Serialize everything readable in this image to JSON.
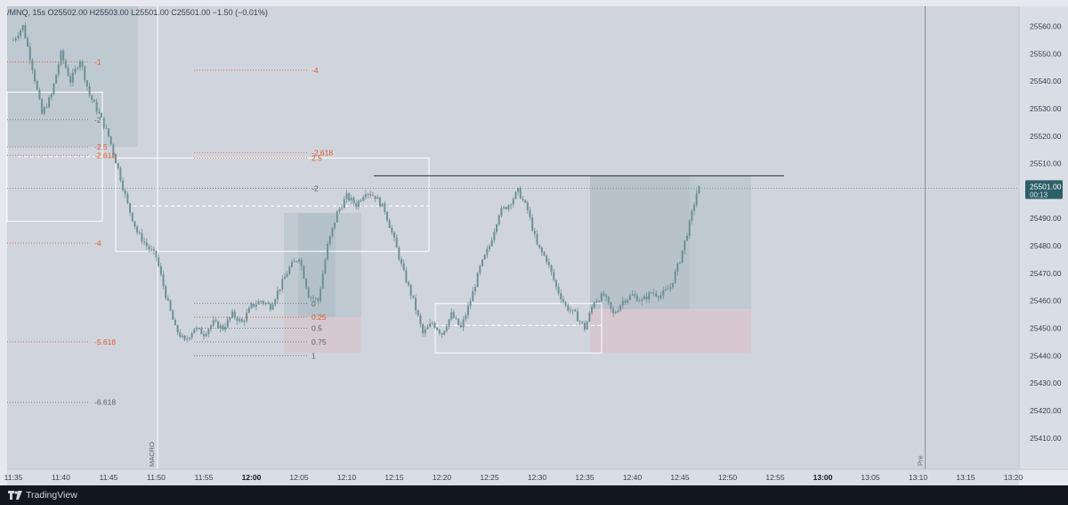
{
  "symbol": {
    "name": "/MNQ",
    "interval": "15s",
    "open": "O25502.00",
    "high": "H25503.00",
    "low": "L25501.00",
    "close": "C25501.00",
    "change": "−1.50 (−0.01%)"
  },
  "price_label": {
    "value": "25501.00",
    "countdown": "00:13"
  },
  "footer": {
    "brand": "TradingView"
  },
  "colors": {
    "background": "#d0d4dd",
    "candle": "#6f8f97",
    "fib_orange": "#e0592a",
    "fib_gray": "#5a5f6a",
    "box_fill": "#bcc7cf",
    "pink_fill": "#d6c7cc",
    "white_lines": "#ffffff"
  },
  "markers": {
    "macro": {
      "label": "MACRO",
      "time": "11:50"
    },
    "pre": {
      "label": "Pre",
      "time": "13:10"
    }
  },
  "chart_data": {
    "type": "candlestick",
    "title": "",
    "x_axis": {
      "ticks": [
        "11:35",
        "11:40",
        "11:45",
        "11:50",
        "11:55",
        "12:00",
        "12:05",
        "12:10",
        "12:15",
        "12:20",
        "12:25",
        "12:30",
        "12:35",
        "12:40",
        "12:45",
        "12:50",
        "12:55",
        "13:00",
        "13:05",
        "13:10",
        "13:15",
        "13:20"
      ],
      "bold_ticks": [
        "12:00",
        "13:00"
      ]
    },
    "y_axis": {
      "side": "right",
      "ticks": [
        25410,
        25420,
        25430,
        25440,
        25450,
        25460,
        25470,
        25480,
        25490,
        25500,
        25510,
        25520,
        25530,
        25540,
        25550,
        25560
      ],
      "ylim": [
        25400,
        25565
      ]
    },
    "price_path": [
      [
        "11:35",
        25555
      ],
      [
        "11:36",
        25560
      ],
      [
        "11:37",
        25545
      ],
      [
        "11:38",
        25528
      ],
      [
        "11:39",
        25535
      ],
      [
        "11:40",
        25550
      ],
      [
        "11:41",
        25540
      ],
      [
        "11:42",
        25548
      ],
      [
        "11:43",
        25535
      ],
      [
        "11:44",
        25528
      ],
      [
        "11:45",
        25520
      ],
      [
        "11:46",
        25508
      ],
      [
        "11:47",
        25495
      ],
      [
        "11:48",
        25485
      ],
      [
        "11:49",
        25480
      ],
      [
        "11:50",
        25476
      ],
      [
        "11:51",
        25462
      ],
      [
        "11:52",
        25450
      ],
      [
        "11:53",
        25445
      ],
      [
        "11:54",
        25450
      ],
      [
        "11:55",
        25448
      ],
      [
        "11:56",
        25452
      ],
      [
        "11:57",
        25450
      ],
      [
        "11:58",
        25455
      ],
      [
        "11:59",
        25452
      ],
      [
        "12:00",
        25458
      ],
      [
        "12:01",
        25460
      ],
      [
        "12:02",
        25458
      ],
      [
        "12:03",
        25465
      ],
      [
        "12:04",
        25472
      ],
      [
        "12:05",
        25476
      ],
      [
        "12:06",
        25462
      ],
      [
        "12:07",
        25460
      ],
      [
        "12:08",
        25480
      ],
      [
        "12:09",
        25492
      ],
      [
        "12:10",
        25498
      ],
      [
        "12:11",
        25495
      ],
      [
        "12:12",
        25500
      ],
      [
        "12:13",
        25498
      ],
      [
        "12:14",
        25493
      ],
      [
        "12:15",
        25482
      ],
      [
        "12:16",
        25470
      ],
      [
        "12:17",
        25460
      ],
      [
        "12:18",
        25448
      ],
      [
        "12:19",
        25452
      ],
      [
        "12:20",
        25448
      ],
      [
        "12:21",
        25455
      ],
      [
        "12:22",
        25450
      ],
      [
        "12:23",
        25460
      ],
      [
        "12:24",
        25472
      ],
      [
        "12:25",
        25480
      ],
      [
        "12:26",
        25492
      ],
      [
        "12:27",
        25495
      ],
      [
        "12:28",
        25500
      ],
      [
        "12:29",
        25493
      ],
      [
        "12:30",
        25480
      ],
      [
        "12:31",
        25475
      ],
      [
        "12:32",
        25465
      ],
      [
        "12:33",
        25458
      ],
      [
        "12:34",
        25455
      ],
      [
        "12:35",
        25450
      ],
      [
        "12:36",
        25460
      ],
      [
        "12:37",
        25462
      ],
      [
        "12:38",
        25455
      ],
      [
        "12:39",
        25460
      ],
      [
        "12:40",
        25462
      ],
      [
        "12:41",
        25460
      ],
      [
        "12:42",
        25463
      ],
      [
        "12:43",
        25462
      ],
      [
        "12:44",
        25465
      ],
      [
        "12:45",
        25475
      ],
      [
        "12:46",
        25488
      ],
      [
        "12:47",
        25503
      ],
      [
        "12:47",
        25501
      ]
    ],
    "resistance_line": {
      "price": 25505.5,
      "from": "12:12",
      "to": "12:56"
    },
    "current_price_line": 25501,
    "fib_levels_left": [
      {
        "label": "-1",
        "price": 25547,
        "color": "orange"
      },
      {
        "label": "-2",
        "price": 25526,
        "color": "gray"
      },
      {
        "label": "-2.5",
        "price": 25516,
        "color": "orange"
      },
      {
        "label": "-2.618",
        "price": 25513,
        "color": "orange"
      },
      {
        "label": "-4",
        "price": 25481,
        "color": "orange"
      },
      {
        "label": "-5.618",
        "price": 25445,
        "color": "orange"
      },
      {
        "label": "-6.618",
        "price": 25423,
        "color": "gray"
      }
    ],
    "fib_levels_right": [
      {
        "label": "-4",
        "price": 25544,
        "color": "orange"
      },
      {
        "label": "-2.618",
        "price": 25514,
        "color": "orange"
      },
      {
        "label": "2.5",
        "price": 25512,
        "color": "orange"
      },
      {
        "label": "-2",
        "price": 25501,
        "color": "gray"
      },
      {
        "label": "0",
        "price": 25459,
        "color": "gray"
      },
      {
        "label": "0.25",
        "price": 25454,
        "color": "orange"
      },
      {
        "label": "0.5",
        "price": 25450,
        "color": "gray"
      },
      {
        "label": "0.75",
        "price": 25445,
        "color": "gray"
      },
      {
        "label": "1",
        "price": 25440,
        "color": "gray"
      }
    ]
  }
}
